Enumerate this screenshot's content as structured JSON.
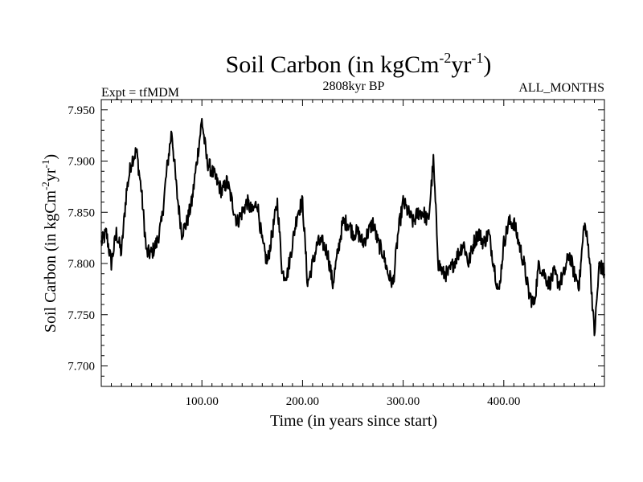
{
  "chart_data": {
    "type": "line",
    "title_main": "Soil Carbon (in kgCm",
    "title_sup1": "-2",
    "title_mid": "yr",
    "title_sup2": "-1",
    "title_end": ")",
    "left_label": "Expt = tfMDM",
    "center_label": "2808kyr BP",
    "right_label": "ALL_MONTHS",
    "xlabel": "Time (in years since start)",
    "ylabel_main": "Soil Carbon (in kgCm",
    "ylabel_sup1": "-2",
    "ylabel_mid": "yr",
    "ylabel_sup2": "-1",
    "ylabel_end": ")",
    "xlim": [
      0,
      500
    ],
    "ylim": [
      7.68,
      7.96
    ],
    "xticks": [
      {
        "value": 100,
        "label": "100.00"
      },
      {
        "value": 200,
        "label": "200.00"
      },
      {
        "value": 300,
        "label": "300.00"
      },
      {
        "value": 400,
        "label": "400.00"
      }
    ],
    "yticks": [
      {
        "value": 7.7,
        "label": "7.700"
      },
      {
        "value": 7.75,
        "label": "7.750"
      },
      {
        "value": 7.8,
        "label": "7.800"
      },
      {
        "value": 7.85,
        "label": "7.850"
      },
      {
        "value": 7.9,
        "label": "7.900"
      },
      {
        "value": 7.95,
        "label": "7.950"
      }
    ],
    "series": [
      {
        "name": "Soil Carbon",
        "color": "#000000",
        "x": [
          0,
          5,
          10,
          15,
          20,
          25,
          30,
          35,
          40,
          45,
          50,
          55,
          60,
          65,
          70,
          75,
          80,
          85,
          90,
          95,
          100,
          105,
          110,
          115,
          120,
          125,
          130,
          135,
          140,
          145,
          150,
          155,
          160,
          165,
          170,
          175,
          180,
          185,
          190,
          195,
          200,
          205,
          210,
          215,
          220,
          225,
          230,
          235,
          240,
          245,
          250,
          255,
          260,
          265,
          270,
          275,
          280,
          285,
          290,
          295,
          300,
          305,
          310,
          315,
          320,
          325,
          330,
          335,
          340,
          345,
          350,
          355,
          360,
          365,
          370,
          375,
          380,
          385,
          390,
          395,
          400,
          405,
          410,
          415,
          420,
          425,
          430,
          435,
          440,
          445,
          450,
          455,
          460,
          465,
          470,
          475,
          480,
          485,
          490,
          495,
          500
        ],
        "y": [
          7.82,
          7.83,
          7.8,
          7.83,
          7.81,
          7.87,
          7.9,
          7.91,
          7.87,
          7.81,
          7.81,
          7.82,
          7.84,
          7.89,
          7.93,
          7.87,
          7.83,
          7.84,
          7.86,
          7.9,
          7.94,
          7.9,
          7.89,
          7.88,
          7.87,
          7.88,
          7.86,
          7.84,
          7.85,
          7.86,
          7.85,
          7.86,
          7.82,
          7.8,
          7.83,
          7.86,
          7.79,
          7.79,
          7.82,
          7.85,
          7.86,
          7.78,
          7.8,
          7.82,
          7.82,
          7.81,
          7.78,
          7.81,
          7.84,
          7.84,
          7.83,
          7.83,
          7.82,
          7.83,
          7.84,
          7.82,
          7.81,
          7.79,
          7.78,
          7.83,
          7.86,
          7.85,
          7.84,
          7.85,
          7.85,
          7.84,
          7.9,
          7.8,
          7.79,
          7.79,
          7.8,
          7.81,
          7.82,
          7.8,
          7.82,
          7.83,
          7.82,
          7.83,
          7.8,
          7.77,
          7.82,
          7.84,
          7.84,
          7.82,
          7.8,
          7.77,
          7.76,
          7.8,
          7.79,
          7.78,
          7.79,
          7.78,
          7.79,
          7.81,
          7.79,
          7.78,
          7.84,
          7.81,
          7.73,
          7.8,
          7.79
        ]
      }
    ]
  }
}
